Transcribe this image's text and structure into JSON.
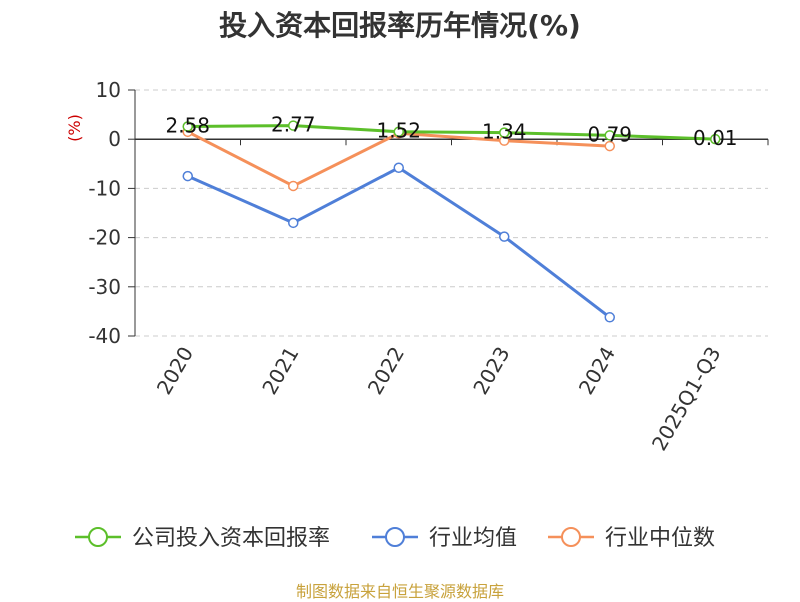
{
  "chart_data": {
    "type": "line",
    "title": "投入资本回报率历年情况(%)",
    "ylabel": "(%)",
    "ylim": [
      -40,
      10
    ],
    "yticks": [
      10,
      0,
      -10,
      -20,
      -30,
      -40
    ],
    "categories": [
      "2020",
      "2021",
      "2022",
      "2023",
      "2024",
      "2025Q1-Q3"
    ],
    "grid": true,
    "legend_position": "bottom",
    "series": [
      {
        "name": "公司投入资本回报率",
        "color": "#5cbf2a",
        "values": [
          2.58,
          2.77,
          1.52,
          1.34,
          0.79,
          0.01
        ],
        "labels": [
          "2.58",
          "2.77",
          "1.52",
          "1.34",
          "0.79",
          "0.01"
        ]
      },
      {
        "name": "行业均值",
        "color": "#4f7fd8",
        "values": [
          -7.5,
          -17.0,
          -5.8,
          -19.8,
          -36.2,
          null
        ]
      },
      {
        "name": "行业中位数",
        "color": "#f5905a",
        "values": [
          1.5,
          -9.5,
          1.2,
          -0.3,
          -1.4,
          null
        ]
      }
    ]
  },
  "source_note": "制图数据来自恒生聚源数据库",
  "colors": {
    "axis": "#333333",
    "grid": "#cccccc",
    "ylabel": "#cc0000"
  }
}
